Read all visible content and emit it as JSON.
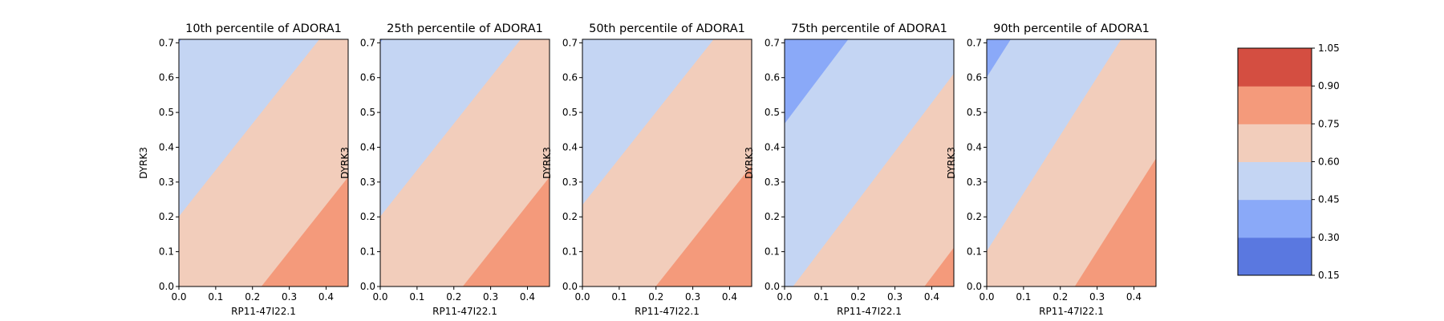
{
  "chart_data": [
    {
      "type": "contour",
      "title": "10th percentile of ADORA1",
      "xlabel": "RP11-47I22.1",
      "ylabel": "DYRK3",
      "xlim": [
        0.0,
        0.46
      ],
      "ylim": [
        0.0,
        0.71
      ],
      "xticks": [
        "0.0",
        "0.1",
        "0.2",
        "0.3",
        "0.4"
      ],
      "yticks": [
        "0.0",
        "0.1",
        "0.2",
        "0.3",
        "0.4",
        "0.5",
        "0.6",
        "0.7"
      ],
      "surface": {
        "intercept": 0.66,
        "slope_x": 0.4,
        "slope_y": -0.3
      }
    },
    {
      "type": "contour",
      "title": "25th percentile of ADORA1",
      "xlabel": "RP11-47I22.1",
      "ylabel": "DYRK3",
      "xlim": [
        0.0,
        0.46
      ],
      "ylim": [
        0.0,
        0.71
      ],
      "xticks": [
        "0.0",
        "0.1",
        "0.2",
        "0.3",
        "0.4"
      ],
      "yticks": [
        "0.0",
        "0.1",
        "0.2",
        "0.3",
        "0.4",
        "0.5",
        "0.6",
        "0.7"
      ],
      "surface": {
        "intercept": 0.66,
        "slope_x": 0.4,
        "slope_y": -0.3
      }
    },
    {
      "type": "contour",
      "title": "50th percentile of ADORA1",
      "xlabel": "RP11-47I22.1",
      "ylabel": "DYRK3",
      "xlim": [
        0.0,
        0.46
      ],
      "ylim": [
        0.0,
        0.71
      ],
      "xticks": [
        "0.0",
        "0.1",
        "0.2",
        "0.3",
        "0.4"
      ],
      "yticks": [
        "0.0",
        "0.1",
        "0.2",
        "0.3",
        "0.4",
        "0.5",
        "0.6",
        "0.7"
      ],
      "surface": {
        "intercept": 0.67,
        "slope_x": 0.4,
        "slope_y": -0.3
      }
    },
    {
      "type": "contour",
      "title": "75th percentile of ADORA1",
      "xlabel": "RP11-47I22.1",
      "ylabel": "DYRK3",
      "xlim": [
        0.0,
        0.46
      ],
      "ylim": [
        0.0,
        0.71
      ],
      "xticks": [
        "0.0",
        "0.1",
        "0.2",
        "0.3",
        "0.4"
      ],
      "yticks": [
        "0.0",
        "0.1",
        "0.2",
        "0.3",
        "0.4",
        "0.5",
        "0.6",
        "0.7"
      ],
      "surface": {
        "intercept": 0.59,
        "slope_x": 0.42,
        "slope_y": -0.3
      }
    },
    {
      "type": "contour",
      "title": "90th percentile of ADORA1",
      "xlabel": "RP11-47I22.1",
      "ylabel": "DYRK3",
      "xlim": [
        0.0,
        0.46
      ],
      "ylim": [
        0.0,
        0.71
      ],
      "xticks": [
        "0.0",
        "0.1",
        "0.2",
        "0.3",
        "0.4"
      ],
      "yticks": [
        "0.0",
        "0.1",
        "0.2",
        "0.3",
        "0.4",
        "0.5",
        "0.6",
        "0.7"
      ],
      "surface": {
        "intercept": 0.63,
        "slope_x": 0.5,
        "slope_y": -0.3
      }
    }
  ],
  "colorbar": {
    "levels": [
      0.15,
      0.3,
      0.45,
      0.6,
      0.75,
      0.9,
      1.05
    ],
    "tick_labels": [
      "0.15",
      "0.30",
      "0.45",
      "0.60",
      "0.75",
      "0.90",
      "1.05"
    ],
    "colors": [
      "#5a78e0",
      "#8aa9f8",
      "#c4d5f3",
      "#f2cdbb",
      "#f49a7b",
      "#d44e41"
    ],
    "colormap": "coolwarm"
  },
  "band_colors": {
    "0.15": "#5a78e0",
    "0.30": "#8aa9f8",
    "0.45": "#c4d5f3",
    "0.60": "#f2cdbb",
    "0.75": "#f49a7b",
    "0.90": "#d44e41"
  }
}
